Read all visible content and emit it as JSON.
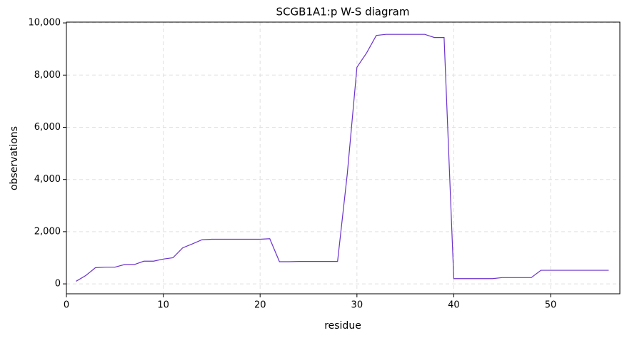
{
  "chart_data": {
    "type": "line",
    "title": "SCGB1A1:p W-S diagram",
    "x_label": "residue",
    "y_label": "observations",
    "x": [
      1,
      2,
      3,
      4,
      5,
      6,
      7,
      8,
      9,
      10,
      11,
      12,
      13,
      14,
      15,
      16,
      17,
      18,
      19,
      20,
      21,
      22,
      23,
      24,
      25,
      26,
      27,
      28,
      29,
      30,
      31,
      32,
      33,
      34,
      35,
      36,
      37,
      38,
      39,
      40,
      41,
      42,
      43,
      44,
      45,
      46,
      47,
      48,
      49,
      50,
      51,
      52,
      53,
      54,
      55,
      56
    ],
    "series": [
      {
        "name": "observations",
        "color": "#6a32cc",
        "values": [
          100,
          320,
          620,
          640,
          640,
          740,
          740,
          870,
          870,
          950,
          1000,
          1380,
          1530,
          1690,
          1710,
          1710,
          1710,
          1710,
          1710,
          1710,
          1730,
          850,
          850,
          860,
          860,
          860,
          860,
          860,
          4200,
          8300,
          8850,
          9520,
          9560,
          9560,
          9560,
          9560,
          9560,
          9440,
          9440,
          200,
          200,
          200,
          200,
          200,
          240,
          240,
          240,
          240,
          520,
          520,
          520,
          520,
          520,
          520,
          520,
          520
        ]
      }
    ],
    "xlim": [
      0,
      57.15
    ],
    "xticks": [
      0,
      10,
      20,
      30,
      40,
      50
    ],
    "ylim": [
      -380,
      10030
    ],
    "yticks": [
      0,
      {
        "value": 2000,
        "label": "2,000"
      },
      {
        "value": 4000,
        "label": "4,000"
      },
      {
        "value": 6000,
        "label": "6,000"
      },
      {
        "value": 8000,
        "label": "8,000"
      },
      {
        "value": 10000,
        "label": "10,000"
      }
    ],
    "grid": true
  }
}
